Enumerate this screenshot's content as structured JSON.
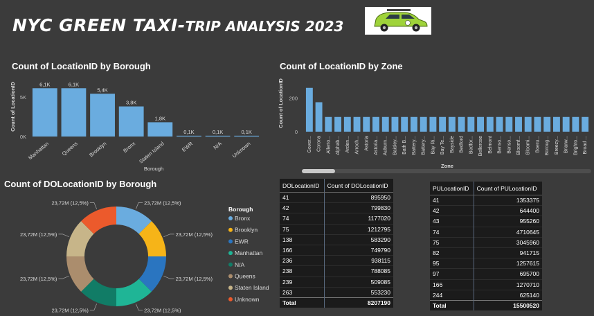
{
  "header": {
    "title_main": "NYC GREEN TAXI-",
    "title_sub": "TRIP ANALYSIS 2023",
    "logo_icon": "green-taxi-car-icon"
  },
  "chart_data": [
    {
      "type": "bar",
      "title": "Count of LocationID by Borough",
      "xlabel": "Borough",
      "ylabel": "Count of LocationID",
      "categories": [
        "Manhattan",
        "Queens",
        "Brooklyn",
        "Bronx",
        "Staten Island",
        "EWR",
        "N/A",
        "Unknown"
      ],
      "values": [
        6100,
        6100,
        5400,
        3800,
        1800,
        100,
        100,
        100
      ],
      "data_labels": [
        "6,1K",
        "6,1K",
        "5,4K",
        "3,8K",
        "1,8K",
        "0,1K",
        "0,1K",
        "0,1K"
      ],
      "yticks": [
        "0K",
        "5K"
      ],
      "ylim": [
        0,
        7000
      ],
      "color": "#6aacdf"
    },
    {
      "type": "bar",
      "title": "Count of LocationID by Zone",
      "xlabel": "Zone",
      "ylabel": "Count of LocationID",
      "categories": [
        "Gover...",
        "Corona",
        "Allerto...",
        "Alphab...",
        "Arden...",
        "Arroch...",
        "Astoria",
        "Astoria...",
        "Auburn...",
        "Baisley...",
        "Bath B...",
        "Battery...",
        "Battery...",
        "Bay Ri...",
        "Bay Te...",
        "Bayside",
        "Bedford",
        "Bedfor...",
        "Bellerose",
        "Belmont",
        "Benso...",
        "Benso...",
        "Bloomf...",
        "Bloomi...",
        "Boeru...",
        "Boroug...",
        "Breezy...",
        "Briarw...",
        "Brighto...",
        "Broad ..."
      ],
      "values": [
        262,
        176,
        88,
        88,
        88,
        88,
        88,
        88,
        88,
        88,
        88,
        88,
        88,
        88,
        88,
        88,
        88,
        88,
        88,
        88,
        88,
        88,
        88,
        88,
        88,
        88,
        88,
        88,
        88,
        88
      ],
      "yticks": [
        0,
        200
      ],
      "ylim": [
        0,
        290
      ],
      "color": "#6aacdf"
    },
    {
      "type": "pie",
      "title": "Count of DOLocationID by Borough",
      "legend_title": "Borough",
      "legend_position": "right",
      "slices": [
        {
          "name": "Bronx",
          "value": 23.72,
          "label": "23,72M (12,5%)",
          "color": "#6aacdf"
        },
        {
          "name": "Brooklyn",
          "value": 23.72,
          "label": "23,72M (12,5%)",
          "color": "#f6b418"
        },
        {
          "name": "EWR",
          "value": 23.72,
          "label": "23,72M (12,5%)",
          "color": "#2a75c0"
        },
        {
          "name": "Manhattan",
          "value": 23.72,
          "label": "23,72M (12,5%)",
          "color": "#1fb596"
        },
        {
          "name": "N/A",
          "value": 23.72,
          "label": "23,72M (12,5%)",
          "color": "#117c66"
        },
        {
          "name": "Queens",
          "value": 23.72,
          "label": "23,72M (12,5%)",
          "color": "#ab8d6d"
        },
        {
          "name": "Staten Island",
          "value": 23.72,
          "label": "23,72M (12,5%)",
          "color": "#c7b589"
        },
        {
          "name": "Unknown",
          "value": 23.72,
          "label": "23,72M (12,5%)",
          "color": "#ec5a2c"
        }
      ]
    },
    {
      "type": "table",
      "columns": [
        "DOLocationID",
        "Count of DOLocationID"
      ],
      "rows": [
        [
          "41",
          "895950"
        ],
        [
          "42",
          "799830"
        ],
        [
          "74",
          "1177020"
        ],
        [
          "75",
          "1212795"
        ],
        [
          "138",
          "583290"
        ],
        [
          "166",
          "749790"
        ],
        [
          "236",
          "938115"
        ],
        [
          "238",
          "788085"
        ],
        [
          "239",
          "509085"
        ],
        [
          "263",
          "553230"
        ]
      ],
      "total": [
        "Total",
        "8207190"
      ]
    },
    {
      "type": "table",
      "columns": [
        "PULocationID",
        "Count of PULocationID"
      ],
      "rows": [
        [
          "41",
          "1353375"
        ],
        [
          "42",
          "644400"
        ],
        [
          "43",
          "955260"
        ],
        [
          "74",
          "4710645"
        ],
        [
          "75",
          "3045960"
        ],
        [
          "82",
          "941715"
        ],
        [
          "95",
          "1257615"
        ],
        [
          "97",
          "695700"
        ],
        [
          "166",
          "1270710"
        ],
        [
          "244",
          "625140"
        ]
      ],
      "total": [
        "Total",
        "15500520"
      ]
    }
  ]
}
